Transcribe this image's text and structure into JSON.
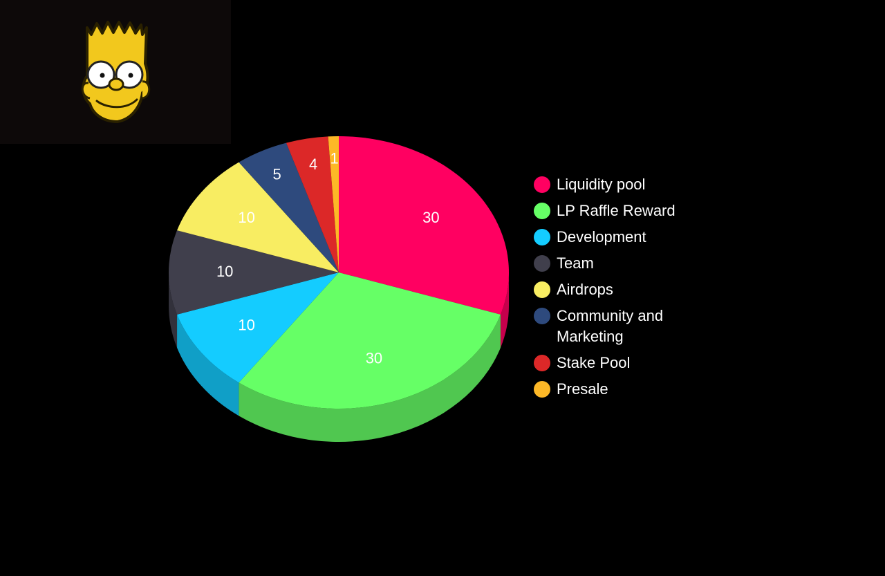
{
  "logo": {
    "icon": "bart-simpson-face-icon",
    "background": "#0d0909"
  },
  "chart_data": {
    "type": "pie",
    "style": "3d-pie",
    "title": "",
    "legend_placement": "right",
    "slices": [
      {
        "label": "Liquidity pool",
        "value": 30,
        "color": "#ff0061"
      },
      {
        "label": "LP Raffle Reward",
        "value": 30,
        "color": "#66ff66"
      },
      {
        "label": "Development",
        "value": 10,
        "color": "#14ccff"
      },
      {
        "label": "Team",
        "value": 10,
        "color": "#403f4c"
      },
      {
        "label": "Airdrops",
        "value": 10,
        "color": "#f8ed62"
      },
      {
        "label": "Community and Marketing",
        "value": 5,
        "color": "#2e4a7d"
      },
      {
        "label": "Stake Pool",
        "value": 4,
        "color": "#dc2828"
      },
      {
        "label": "Presale",
        "value": 1,
        "color": "#fdb827"
      }
    ]
  }
}
